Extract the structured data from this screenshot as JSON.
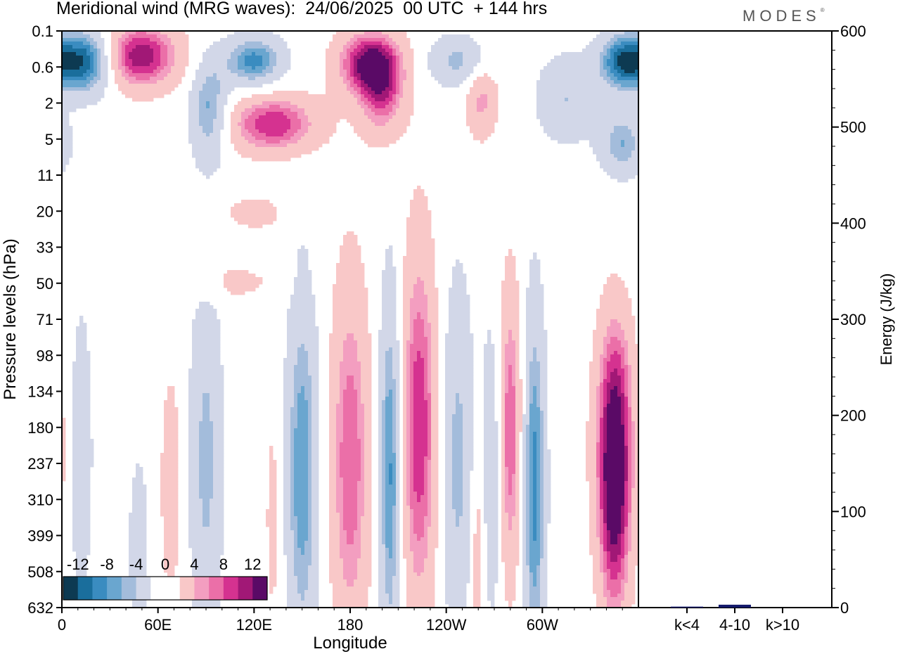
{
  "header": {
    "title": "Meridional wind (MRG waves):  24/06/2025  00 UTC  + 144 hrs",
    "brand": "MODES"
  },
  "colors": {
    "negative": [
      "#0d3a52",
      "#1a6e9c",
      "#3a8cc0",
      "#6aa6cf",
      "#a3bcdb",
      "#d2d7e8"
    ],
    "zero": "#ffffff",
    "positive": [
      "#f9c8c8",
      "#f39ec0",
      "#eb6fa8",
      "#d53290",
      "#a11876",
      "#5a0a66"
    ],
    "bar": "#141a6b"
  },
  "chart_data": [
    {
      "type": "heatmap",
      "xlabel": "Longitude",
      "ylabel": "Pressure levels (hPa)",
      "x_ticks": [
        "0",
        "60E",
        "120E",
        "180",
        "120W",
        "60W"
      ],
      "y_ticks": [
        "0.1",
        "0.6",
        "2",
        "5",
        "11",
        "20",
        "33",
        "50",
        "71",
        "98",
        "134",
        "180",
        "237",
        "310",
        "399",
        "508",
        "632"
      ],
      "colorbar_labels": [
        "-12",
        "-8",
        "-4",
        "0",
        "4",
        "8",
        "12"
      ],
      "colorbar_levels": [
        -14,
        -12,
        -10,
        -8,
        -6,
        -4,
        -2,
        2,
        4,
        6,
        8,
        10,
        12,
        14
      ],
      "blobs": [
        {
          "lon": 15,
          "level": 0.45,
          "v": -15,
          "lon_half_width": 18,
          "level_half_span": 0.9
        },
        {
          "lon": 48,
          "level": 0.35,
          "v": 14,
          "lon_half_width": 25,
          "level_half_span": 0.9
        },
        {
          "lon": 92,
          "level": 2.4,
          "v": -9,
          "lon_half_width": 12,
          "level_half_span": 1.4
        },
        {
          "lon": 120,
          "level": 0.45,
          "v": -11,
          "lon_half_width": 18,
          "level_half_span": 0.7
        },
        {
          "lon": 132,
          "level": 3.4,
          "v": 12,
          "lon_half_width": 28,
          "level_half_span": 0.8
        },
        {
          "lon": 192,
          "level": 0.5,
          "v": 14,
          "lon_half_width": 20,
          "level_half_span": 0.9
        },
        {
          "lon": 200,
          "level": 1.6,
          "v": 9,
          "lon_half_width": 14,
          "level_half_span": 1.2
        },
        {
          "lon": 248,
          "level": 0.45,
          "v": -7,
          "lon_half_width": 20,
          "level_half_span": 0.7
        },
        {
          "lon": 262,
          "level": 1.7,
          "v": 7,
          "lon_half_width": 10,
          "level_half_span": 1.1
        },
        {
          "lon": 315,
          "level": 1.7,
          "v": -6,
          "lon_half_width": 18,
          "level_half_span": 1.2
        },
        {
          "lon": 350,
          "level": 0.45,
          "v": -13,
          "lon_half_width": 15,
          "level_half_span": 0.8
        },
        {
          "lon": 350,
          "level": 5.5,
          "v": -8,
          "lon_half_width": 14,
          "level_half_span": 0.9
        },
        {
          "lon": 120,
          "level": 20.5,
          "v": 3,
          "lon_half_width": 25,
          "level_half_span": 0.6
        },
        {
          "lon": 100,
          "level": 49,
          "v": 3,
          "lon_half_width": 38,
          "level_half_span": 0.6
        },
        {
          "lon": 12,
          "level": 220,
          "v": -5,
          "lon_half_width": 7,
          "level_half_span": 4.0
        },
        {
          "lon": 48,
          "level": 440,
          "v": -5,
          "lon_half_width": 6,
          "level_half_span": 2.5
        },
        {
          "lon": 68,
          "level": 280,
          "v": 5,
          "lon_half_width": 6,
          "level_half_span": 3.0
        },
        {
          "lon": 90,
          "level": 230,
          "v": -7,
          "lon_half_width": 10,
          "level_half_span": 5.0
        },
        {
          "lon": 132,
          "level": 350,
          "v": 3,
          "lon_half_width": 6,
          "level_half_span": 4.0
        },
        {
          "lon": 150,
          "level": 250,
          "v": -10,
          "lon_half_width": 10,
          "level_half_span": 5.0
        },
        {
          "lon": 180,
          "level": 230,
          "v": 10,
          "lon_half_width": 12,
          "level_half_span": 5.0
        },
        {
          "lon": 205,
          "level": 250,
          "v": -11,
          "lon_half_width": 7,
          "level_half_span": 5.0
        },
        {
          "lon": 223,
          "level": 180,
          "v": 12,
          "lon_half_width": 11,
          "level_half_span": 5.0
        },
        {
          "lon": 247,
          "level": 230,
          "v": -7,
          "lon_half_width": 10,
          "level_half_span": 5.0
        },
        {
          "lon": 268,
          "level": 260,
          "v": -6,
          "lon_half_width": 6,
          "level_half_span": 4.0
        },
        {
          "lon": 280,
          "level": 185,
          "v": 10,
          "lon_half_width": 7,
          "level_half_span": 4.0
        },
        {
          "lon": 295,
          "level": 280,
          "v": -11,
          "lon_half_width": 7,
          "level_half_span": 5.0
        },
        {
          "lon": 345,
          "level": 200,
          "v": 13,
          "lon_half_width": 12,
          "level_half_span": 3.0
        },
        {
          "lon": 345,
          "level": 400,
          "v": 9,
          "lon_half_width": 10,
          "level_half_span": 3.0
        },
        {
          "lon": 346,
          "level": 100,
          "v": 3,
          "lon_half_width": 10,
          "level_half_span": 2.0
        },
        {
          "lon": 260,
          "level": 450,
          "v": 5,
          "lon_half_width": 5,
          "level_half_span": 3.0
        }
      ]
    },
    {
      "type": "bar",
      "ylabel": "Energy (J/kg)",
      "categories": [
        "k<4",
        "4-10",
        "k>10"
      ],
      "values": [
        1,
        3,
        0
      ],
      "ylim": [
        0,
        600
      ],
      "y_ticks": [
        0,
        100,
        200,
        300,
        400,
        500,
        600
      ]
    }
  ]
}
